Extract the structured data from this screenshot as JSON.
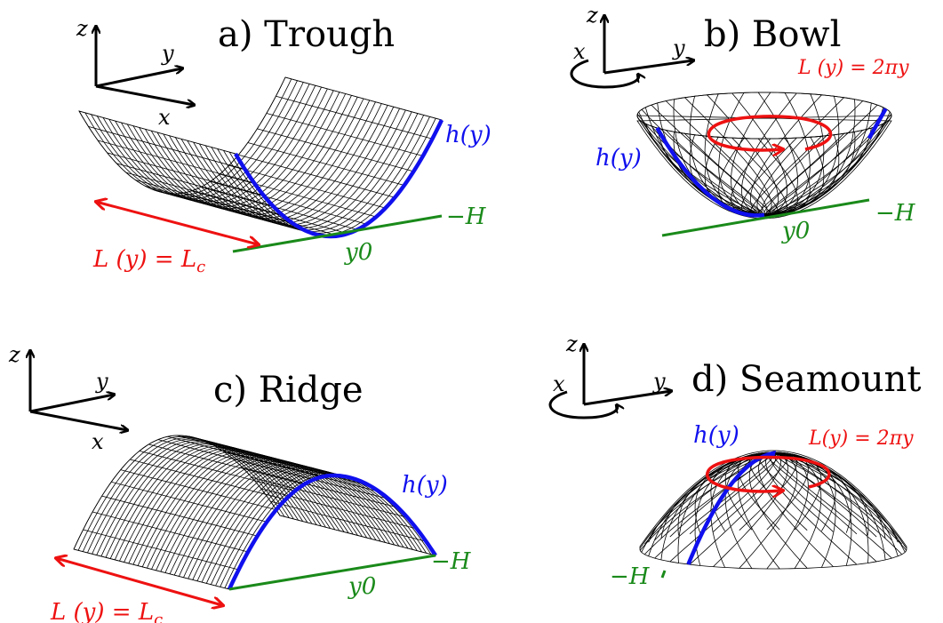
{
  "colors": {
    "profile": "#1010ee",
    "length": "#ee1111",
    "base": "#1a8a1a",
    "ink": "#000000"
  },
  "panels": {
    "a": {
      "title": "a) Trough",
      "axes": {
        "x": "x",
        "y": "y",
        "z": "z"
      },
      "profile_label": "h(y)",
      "base_label": "−H",
      "y0_label": "y0",
      "length_label": "L (y) =  L",
      "length_sub": "c"
    },
    "b": {
      "title": "b) Bowl",
      "axes": {
        "x": "x",
        "y": "y",
        "z": "z"
      },
      "profile_label": "h(y)",
      "base_label": "−H",
      "y0_label": "y0",
      "length_label": "L (y) = 2πy"
    },
    "c": {
      "title": "c) Ridge",
      "axes": {
        "x": "x",
        "y": "y",
        "z": "z"
      },
      "profile_label": "h(y)",
      "base_label": "−H",
      "y0_label": "y0",
      "length_label": "L (y) =  L",
      "length_sub": "c"
    },
    "d": {
      "title": "d) Seamount",
      "axes": {
        "x": "x",
        "y": "y",
        "z": "z"
      },
      "profile_label": "h(y)",
      "base_label": "−H",
      "length_label": "L(y) = 2πy"
    }
  }
}
